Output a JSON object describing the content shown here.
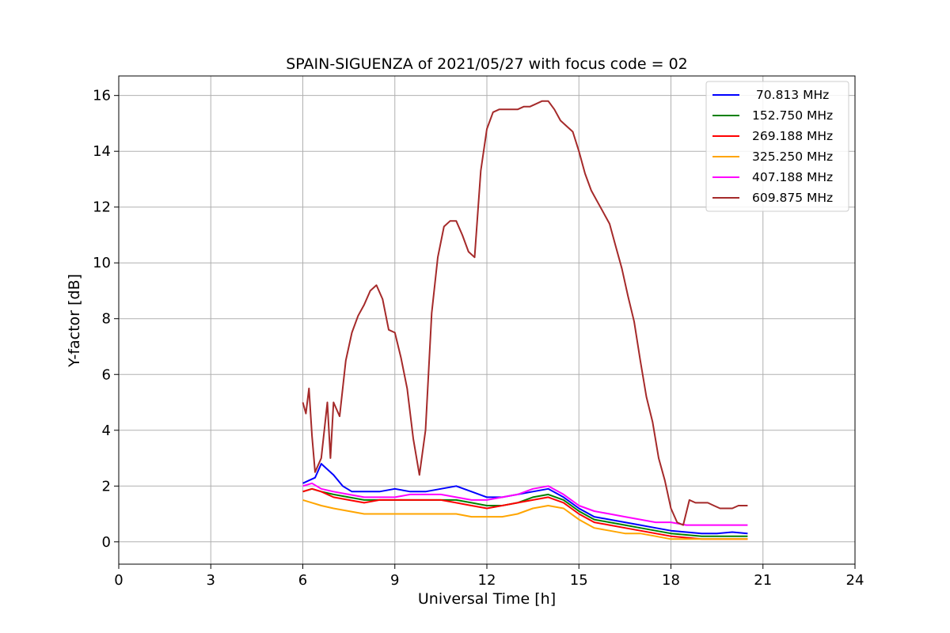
{
  "chart_data": {
    "type": "line",
    "title": "SPAIN-SIGUENZA of 2021/05/27 with focus code = 02",
    "xlabel": "Universal Time [h]",
    "ylabel": "Y-factor [dB]",
    "xlim": [
      0,
      24
    ],
    "ylim": [
      -0.8,
      16.7
    ],
    "xticks": [
      0,
      3,
      6,
      9,
      12,
      15,
      18,
      21,
      24
    ],
    "xtick_labels": [
      "0",
      "3",
      "6",
      "9",
      "12",
      "15",
      "18",
      "21",
      "24"
    ],
    "yticks": [
      0,
      2,
      4,
      6,
      8,
      10,
      12,
      14,
      16
    ],
    "ytick_labels": [
      "0",
      "2",
      "4",
      "6",
      "8",
      "10",
      "12",
      "14",
      "16"
    ],
    "grid": true,
    "legend_position": "top-right",
    "series": [
      {
        "name": " 70.813 MHz",
        "color": "#0000ff",
        "x": [
          6.0,
          6.2,
          6.4,
          6.6,
          6.8,
          7.0,
          7.3,
          7.6,
          8.0,
          8.5,
          9.0,
          9.5,
          10.0,
          10.5,
          11.0,
          11.5,
          12.0,
          12.5,
          13.0,
          13.5,
          14.0,
          14.5,
          15.0,
          15.5,
          16.0,
          16.5,
          17.0,
          17.5,
          18.0,
          18.5,
          19.0,
          19.5,
          20.0,
          20.5
        ],
        "y": [
          2.1,
          2.2,
          2.3,
          2.8,
          2.6,
          2.4,
          2.0,
          1.8,
          1.8,
          1.8,
          1.9,
          1.8,
          1.8,
          1.9,
          2.0,
          1.8,
          1.6,
          1.6,
          1.7,
          1.8,
          1.9,
          1.6,
          1.2,
          0.9,
          0.8,
          0.7,
          0.6,
          0.5,
          0.4,
          0.35,
          0.3,
          0.3,
          0.35,
          0.3
        ]
      },
      {
        "name": "152.750 MHz",
        "color": "#008000",
        "x": [
          6.0,
          6.3,
          6.6,
          7.0,
          7.5,
          8.0,
          8.5,
          9.0,
          9.5,
          10.0,
          10.5,
          11.0,
          11.5,
          12.0,
          12.5,
          13.0,
          13.5,
          14.0,
          14.5,
          15.0,
          15.5,
          16.0,
          16.5,
          17.0,
          17.5,
          18.0,
          18.5,
          19.0,
          19.5,
          20.0,
          20.5
        ],
        "y": [
          1.8,
          1.9,
          1.8,
          1.7,
          1.6,
          1.5,
          1.5,
          1.5,
          1.5,
          1.5,
          1.5,
          1.5,
          1.4,
          1.3,
          1.3,
          1.4,
          1.6,
          1.7,
          1.5,
          1.1,
          0.8,
          0.7,
          0.6,
          0.5,
          0.4,
          0.3,
          0.25,
          0.2,
          0.2,
          0.2,
          0.2
        ]
      },
      {
        "name": "269.188 MHz",
        "color": "#ff0000",
        "x": [
          6.0,
          6.3,
          6.6,
          7.0,
          7.5,
          8.0,
          8.5,
          9.0,
          9.5,
          10.0,
          10.5,
          11.0,
          11.5,
          12.0,
          12.5,
          13.0,
          13.5,
          14.0,
          14.5,
          15.0,
          15.5,
          16.0,
          16.5,
          17.0,
          17.5,
          18.0,
          18.5,
          19.0,
          19.5,
          20.0,
          20.5
        ],
        "y": [
          1.8,
          1.9,
          1.8,
          1.6,
          1.5,
          1.4,
          1.5,
          1.5,
          1.5,
          1.5,
          1.5,
          1.4,
          1.3,
          1.2,
          1.3,
          1.4,
          1.5,
          1.6,
          1.4,
          1.0,
          0.7,
          0.6,
          0.5,
          0.4,
          0.3,
          0.2,
          0.15,
          0.1,
          0.1,
          0.1,
          0.1
        ]
      },
      {
        "name": "325.250 MHz",
        "color": "#ffa500",
        "x": [
          6.0,
          6.3,
          6.6,
          7.0,
          7.5,
          8.0,
          8.5,
          9.0,
          9.5,
          10.0,
          10.5,
          11.0,
          11.5,
          12.0,
          12.5,
          13.0,
          13.5,
          14.0,
          14.5,
          15.0,
          15.5,
          16.0,
          16.5,
          17.0,
          17.5,
          18.0,
          18.5,
          19.0,
          19.5,
          20.0,
          20.5
        ],
        "y": [
          1.5,
          1.4,
          1.3,
          1.2,
          1.1,
          1.0,
          1.0,
          1.0,
          1.0,
          1.0,
          1.0,
          1.0,
          0.9,
          0.9,
          0.9,
          1.0,
          1.2,
          1.3,
          1.2,
          0.8,
          0.5,
          0.4,
          0.3,
          0.3,
          0.2,
          0.1,
          0.1,
          0.1,
          0.1,
          0.1,
          0.1
        ]
      },
      {
        "name": "407.188 MHz",
        "color": "#ff00ff",
        "x": [
          6.0,
          6.3,
          6.6,
          7.0,
          7.5,
          8.0,
          8.5,
          9.0,
          9.5,
          10.0,
          10.5,
          11.0,
          11.5,
          12.0,
          12.5,
          13.0,
          13.5,
          14.0,
          14.5,
          15.0,
          15.5,
          16.0,
          16.5,
          17.0,
          17.5,
          18.0,
          18.5,
          19.0,
          19.5,
          20.0,
          20.5
        ],
        "y": [
          2.0,
          2.1,
          1.9,
          1.8,
          1.7,
          1.6,
          1.6,
          1.6,
          1.7,
          1.7,
          1.7,
          1.6,
          1.5,
          1.5,
          1.6,
          1.7,
          1.9,
          2.0,
          1.7,
          1.3,
          1.1,
          1.0,
          0.9,
          0.8,
          0.7,
          0.7,
          0.6,
          0.6,
          0.6,
          0.6,
          0.6
        ]
      },
      {
        "name": "609.875 MHz",
        "color": "#a52a2a",
        "x": [
          6.0,
          6.1,
          6.2,
          6.3,
          6.4,
          6.6,
          6.8,
          6.9,
          7.0,
          7.2,
          7.4,
          7.6,
          7.8,
          8.0,
          8.2,
          8.4,
          8.6,
          8.8,
          9.0,
          9.2,
          9.4,
          9.6,
          9.8,
          10.0,
          10.2,
          10.4,
          10.6,
          10.8,
          11.0,
          11.2,
          11.4,
          11.6,
          11.8,
          12.0,
          12.2,
          12.4,
          12.6,
          12.8,
          13.0,
          13.2,
          13.4,
          13.6,
          13.8,
          14.0,
          14.2,
          14.4,
          14.6,
          14.8,
          15.0,
          15.2,
          15.4,
          15.6,
          15.8,
          16.0,
          16.2,
          16.4,
          16.6,
          16.8,
          17.0,
          17.2,
          17.4,
          17.6,
          17.8,
          18.0,
          18.2,
          18.4,
          18.6,
          18.8,
          19.0,
          19.2,
          19.4,
          19.6,
          19.8,
          20.0,
          20.2,
          20.5
        ],
        "y": [
          5.0,
          4.6,
          5.5,
          3.8,
          2.5,
          3.0,
          5.0,
          3.0,
          5.0,
          4.5,
          6.5,
          7.5,
          8.1,
          8.5,
          9.0,
          9.2,
          8.7,
          7.6,
          7.5,
          6.6,
          5.5,
          3.7,
          2.4,
          4.0,
          8.2,
          10.2,
          11.3,
          11.5,
          11.5,
          11.0,
          10.4,
          10.2,
          13.3,
          14.8,
          15.4,
          15.5,
          15.5,
          15.5,
          15.5,
          15.6,
          15.6,
          15.7,
          15.8,
          15.8,
          15.5,
          15.1,
          14.9,
          14.7,
          14.0,
          13.2,
          12.6,
          12.2,
          11.8,
          11.4,
          10.6,
          9.8,
          8.8,
          7.9,
          6.5,
          5.2,
          4.3,
          3.0,
          2.2,
          1.2,
          0.7,
          0.6,
          1.5,
          1.4,
          1.4,
          1.4,
          1.3,
          1.2,
          1.2,
          1.2,
          1.3,
          1.3
        ]
      }
    ]
  }
}
